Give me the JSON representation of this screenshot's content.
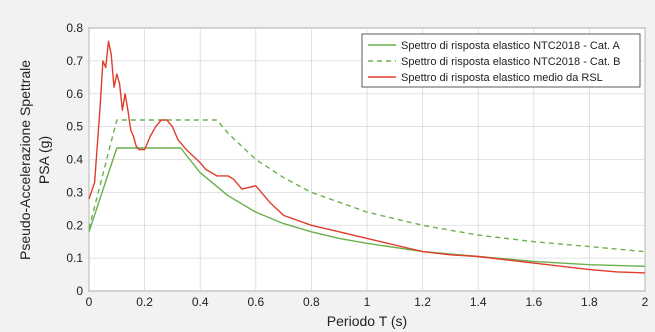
{
  "chart_data": {
    "type": "line",
    "xlabel": "Periodo T (s)",
    "ylabel_lines": [
      "Pseudo-Accelerazione Spettrale",
      "PSA (g)"
    ],
    "xlim": [
      0,
      2
    ],
    "ylim": [
      0,
      0.8
    ],
    "x_ticks": [
      "0",
      "0.2",
      "0.4",
      "0.6",
      "0.8",
      "1",
      "1.2",
      "1.4",
      "1.6",
      "1.8",
      "2"
    ],
    "y_ticks": [
      "0",
      "0.1",
      "0.2",
      "0.3",
      "0.4",
      "0.5",
      "0.6",
      "0.7",
      "0.8"
    ],
    "grid": true,
    "legend_position": "top-right",
    "series": [
      {
        "name": "Spettro di risposta elastico NTC2018 - Cat. A",
        "color": "#6ab04c",
        "dash": "solid",
        "x": [
          0,
          0.1,
          0.33,
          0.4,
          0.5,
          0.6,
          0.7,
          0.8,
          0.9,
          1.0,
          1.2,
          1.4,
          1.6,
          1.8,
          2.0
        ],
        "y": [
          0.18,
          0.435,
          0.435,
          0.36,
          0.29,
          0.24,
          0.205,
          0.18,
          0.16,
          0.145,
          0.12,
          0.105,
          0.09,
          0.08,
          0.075
        ]
      },
      {
        "name": "Spettro di risposta elastico NTC2018 - Cat. B",
        "color": "#6ab04c",
        "dash": "dashed",
        "x": [
          0,
          0.1,
          0.46,
          0.5,
          0.6,
          0.7,
          0.8,
          0.9,
          1.0,
          1.2,
          1.4,
          1.6,
          1.8,
          2.0
        ],
        "y": [
          0.19,
          0.52,
          0.52,
          0.48,
          0.4,
          0.345,
          0.3,
          0.27,
          0.24,
          0.2,
          0.17,
          0.15,
          0.135,
          0.12
        ]
      },
      {
        "name": "Spettro di risposta elastico medio da RSL",
        "color": "#e03c2c",
        "dash": "solid",
        "x": [
          0,
          0.02,
          0.04,
          0.05,
          0.06,
          0.07,
          0.08,
          0.09,
          0.1,
          0.11,
          0.12,
          0.13,
          0.14,
          0.15,
          0.16,
          0.17,
          0.18,
          0.19,
          0.2,
          0.22,
          0.24,
          0.26,
          0.28,
          0.3,
          0.32,
          0.35,
          0.4,
          0.42,
          0.44,
          0.46,
          0.5,
          0.52,
          0.55,
          0.6,
          0.65,
          0.7,
          0.8,
          0.9,
          1.0,
          1.1,
          1.2,
          1.3,
          1.4,
          1.5,
          1.6,
          1.7,
          1.8,
          1.9,
          2.0
        ],
        "y": [
          0.28,
          0.33,
          0.56,
          0.7,
          0.68,
          0.76,
          0.72,
          0.62,
          0.66,
          0.63,
          0.55,
          0.6,
          0.55,
          0.49,
          0.47,
          0.44,
          0.43,
          0.43,
          0.43,
          0.47,
          0.5,
          0.52,
          0.52,
          0.5,
          0.46,
          0.43,
          0.39,
          0.37,
          0.36,
          0.35,
          0.35,
          0.34,
          0.31,
          0.32,
          0.27,
          0.23,
          0.2,
          0.18,
          0.16,
          0.14,
          0.12,
          0.11,
          0.105,
          0.095,
          0.085,
          0.075,
          0.065,
          0.058,
          0.055
        ]
      }
    ]
  }
}
